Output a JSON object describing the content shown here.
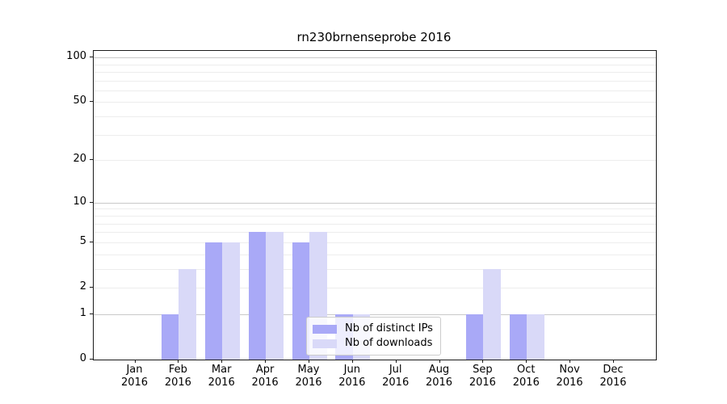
{
  "chart_data": {
    "type": "bar",
    "title": "rn230brnenseprobe 2016",
    "year_label": "2016",
    "categories": [
      "Jan",
      "Feb",
      "Mar",
      "Apr",
      "May",
      "Jun",
      "Jul",
      "Aug",
      "Sep",
      "Oct",
      "Nov",
      "Dec"
    ],
    "series": [
      {
        "name": "Nb of distinct IPs",
        "color": "#a9a9f7",
        "values": [
          0,
          1,
          5,
          6,
          5,
          1,
          0,
          0,
          1,
          1,
          0,
          0
        ]
      },
      {
        "name": "Nb of downloads",
        "color": "#d9d9f8",
        "values": [
          0,
          3,
          5,
          6,
          6,
          1,
          0,
          0,
          3,
          1,
          0,
          0
        ]
      }
    ],
    "yscale": "log1p",
    "ylim": [
      0,
      110.5
    ],
    "ytick_labels": [
      0,
      1,
      2,
      5,
      10,
      20,
      50,
      100
    ],
    "grid": {
      "major": [
        1,
        10,
        100
      ],
      "minor": [
        2,
        3,
        4,
        5,
        6,
        7,
        8,
        9,
        20,
        30,
        40,
        50,
        60,
        70,
        80,
        90
      ]
    },
    "grid_on": true,
    "legend_position": "lower-center",
    "colors": {
      "grid_major": "#c9c9c9",
      "grid_minor": "#ededed",
      "axis": "#1a1a1a",
      "background": "#ffffff"
    }
  }
}
